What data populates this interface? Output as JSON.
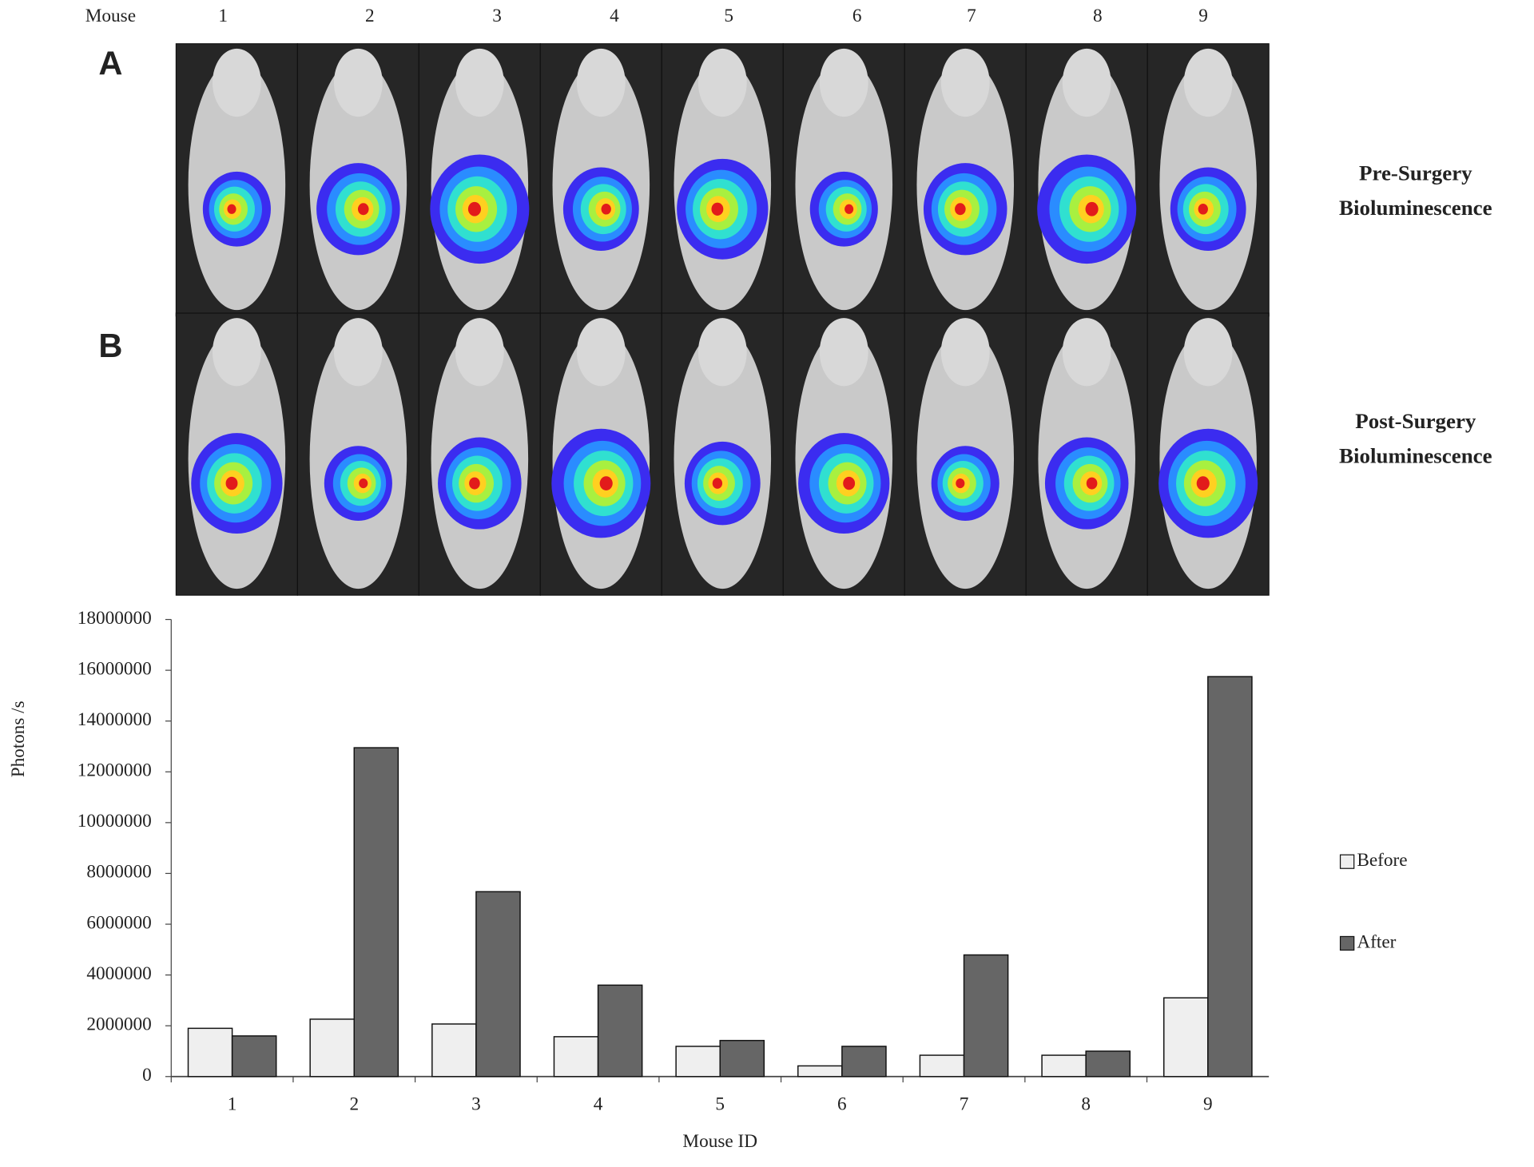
{
  "figure": {
    "header": "Mouse",
    "columns": [
      "1",
      "2",
      "3",
      "4",
      "5",
      "6",
      "7",
      "8",
      "9"
    ],
    "panels": [
      "A",
      "B"
    ],
    "rows": [
      {
        "label_lines": [
          "Pre-Surgery",
          "Bioluminescence"
        ]
      },
      {
        "label_lines": [
          "Post-Surgery",
          "Bioluminescence"
        ]
      }
    ]
  },
  "chart_data": {
    "type": "bar",
    "categories": [
      "1",
      "2",
      "3",
      "4",
      "5",
      "6",
      "7",
      "8",
      "9"
    ],
    "series": [
      {
        "name": "Before",
        "color": "#efefef",
        "values": [
          1900000,
          2260000,
          2070000,
          1570000,
          1190000,
          420000,
          840000,
          840000,
          3100000
        ]
      },
      {
        "name": "After",
        "color": "#666666",
        "values": [
          1600000,
          12950000,
          7280000,
          3600000,
          1420000,
          1190000,
          4790000,
          1000000,
          15750000
        ]
      }
    ],
    "ylim": [
      0,
      18000000
    ],
    "yticks": [
      0,
      2000000,
      4000000,
      6000000,
      8000000,
      10000000,
      12000000,
      14000000,
      16000000,
      18000000
    ],
    "y_label": "Photons  /s",
    "x_label": "Mouse ID",
    "legend": "right",
    "grid": false
  }
}
